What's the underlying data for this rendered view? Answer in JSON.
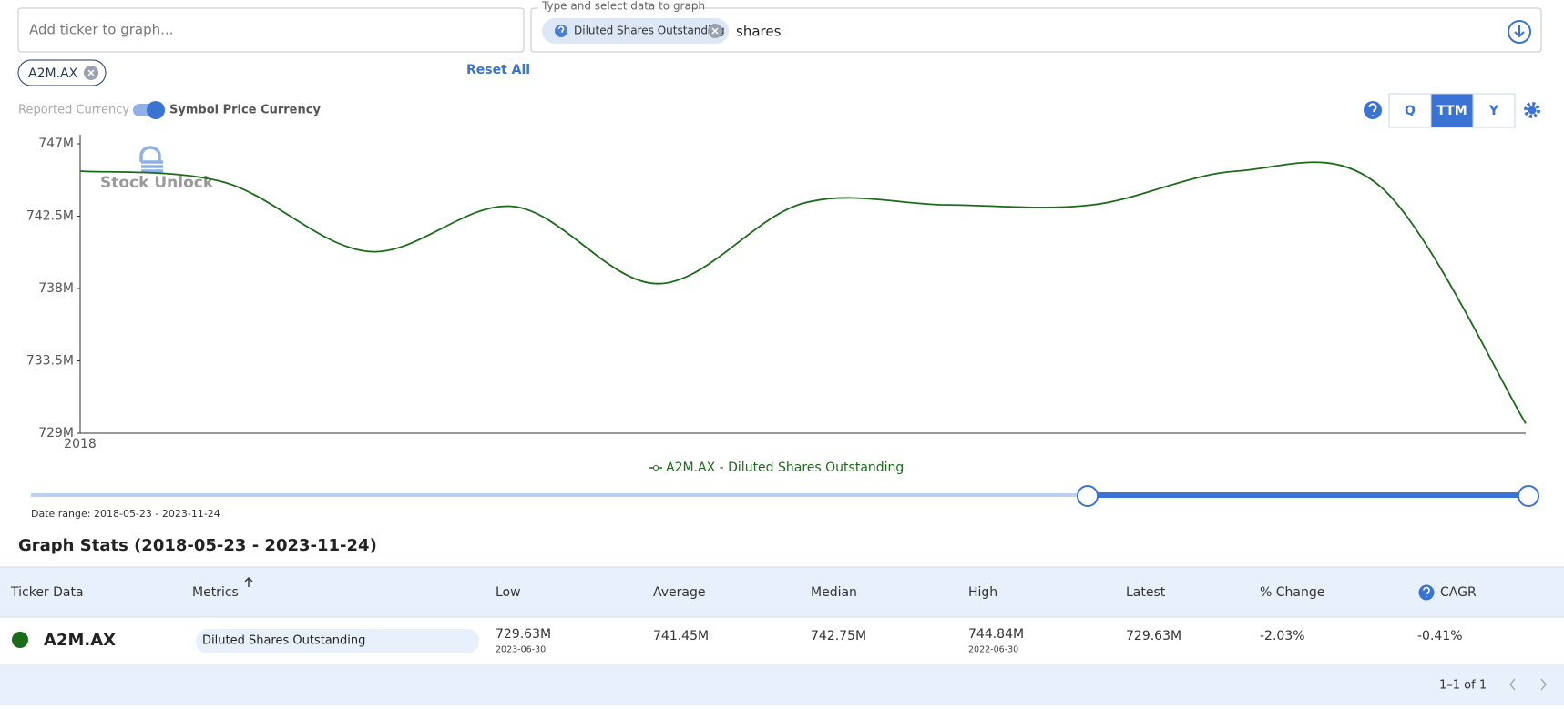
{
  "controls": {
    "ticker_placeholder": "Add ticker to graph...",
    "data_field_label": "Type and select data to graph",
    "selected_metric": "Diluted Shares Outstanding",
    "search_text": "shares",
    "ticker_chip": "A2M.AX",
    "reset": "Reset All",
    "currency_off": "Reported Currency",
    "currency_on": "Symbol Price Currency",
    "periods": [
      "Q",
      "TTM",
      "Y"
    ],
    "active_period": "TTM"
  },
  "chart_data": {
    "type": "line",
    "watermark": "Stock Unlock",
    "categories": [
      "2018",
      null,
      null,
      null,
      null,
      null,
      null,
      null,
      null,
      null,
      null
    ],
    "series": [
      {
        "name": "A2M.AX - Diluted Shares Outstanding",
        "color": "#1b6b1b",
        "values": [
          745.3,
          744.6,
          740.3,
          743.1,
          738.3,
          743.3,
          743.2,
          743.2,
          745.3,
          744.3,
          729.6
        ]
      }
    ],
    "ylim": [
      729,
      747
    ],
    "yticks": [
      {
        "value": 729,
        "label": "729M"
      },
      {
        "value": 733.5,
        "label": "733.5M"
      },
      {
        "value": 738,
        "label": "738M"
      },
      {
        "value": 742.5,
        "label": "742.5M"
      },
      {
        "value": 747,
        "label": "747M"
      }
    ],
    "grid": false
  },
  "range": {
    "label": "Date range: 2018-05-23 - 2023-11-24"
  },
  "stats": {
    "title": "Graph Stats (2018-05-23 - 2023-11-24)",
    "headers": [
      "Ticker Data",
      "Metrics",
      "Low",
      "Average",
      "Median",
      "High",
      "Latest",
      "% Change",
      "CAGR"
    ],
    "row": {
      "ticker": "A2M.AX",
      "metric": "Diluted Shares Outstanding",
      "low": "729.63M",
      "low_date": "2023-06-30",
      "average": "741.45M",
      "median": "742.75M",
      "high": "744.84M",
      "high_date": "2022-06-30",
      "latest": "729.63M",
      "change": "-2.03%",
      "cagr": "-0.41%"
    },
    "pagination": "1–1 of 1"
  }
}
